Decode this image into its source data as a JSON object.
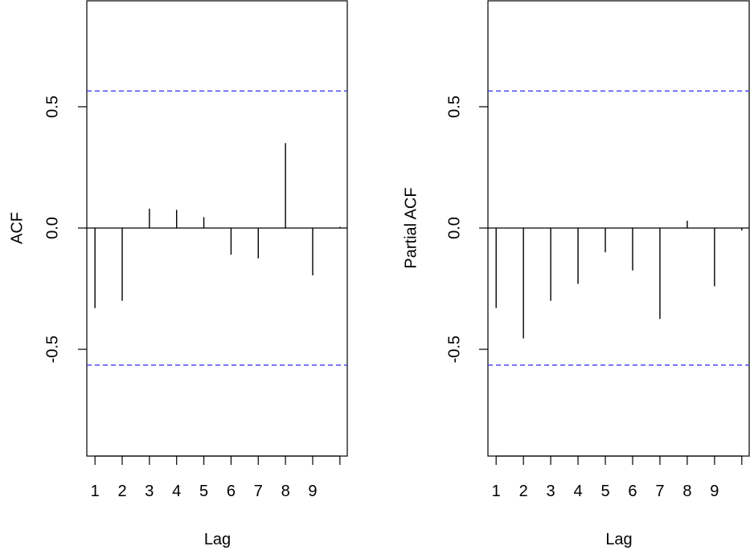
{
  "chart_data": [
    {
      "type": "bar",
      "subtype": "acf-spike",
      "xlabel": "Lag",
      "ylabel": "ACF",
      "x_ticks": [
        "1",
        "2",
        "3",
        "4",
        "5",
        "6",
        "7",
        "8",
        "9"
      ],
      "y_ticks": [
        "-0.5",
        "0.0",
        "0.5"
      ],
      "ylim": [
        -0.94,
        0.94
      ],
      "xlim": [
        0.7,
        10.3
      ],
      "lags": [
        1,
        2,
        3,
        4,
        5,
        6,
        7,
        8,
        9,
        10
      ],
      "values": [
        -0.33,
        -0.3,
        0.08,
        0.075,
        0.045,
        -0.11,
        -0.125,
        0.35,
        -0.195,
        0.005
      ],
      "confidence_bound": 0.565,
      "colors": {
        "spike": "#000000",
        "bound": "#3b3bef",
        "axis": "#000000"
      }
    },
    {
      "type": "bar",
      "subtype": "pacf-spike",
      "xlabel": "Lag",
      "ylabel": "Partial ACF",
      "x_ticks": [
        "1",
        "2",
        "3",
        "4",
        "5",
        "6",
        "7",
        "8",
        "9"
      ],
      "y_ticks": [
        "-0.5",
        "0.0",
        "0.5"
      ],
      "ylim": [
        -0.94,
        0.94
      ],
      "xlim": [
        0.7,
        10.3
      ],
      "lags": [
        1,
        2,
        3,
        4,
        5,
        6,
        7,
        8,
        9,
        10
      ],
      "values": [
        -0.33,
        -0.455,
        -0.3,
        -0.23,
        -0.1,
        -0.175,
        -0.375,
        0.03,
        -0.24,
        -0.01
      ],
      "confidence_bound": 0.565,
      "colors": {
        "spike": "#000000",
        "bound": "#3b3bef",
        "axis": "#000000"
      }
    }
  ]
}
